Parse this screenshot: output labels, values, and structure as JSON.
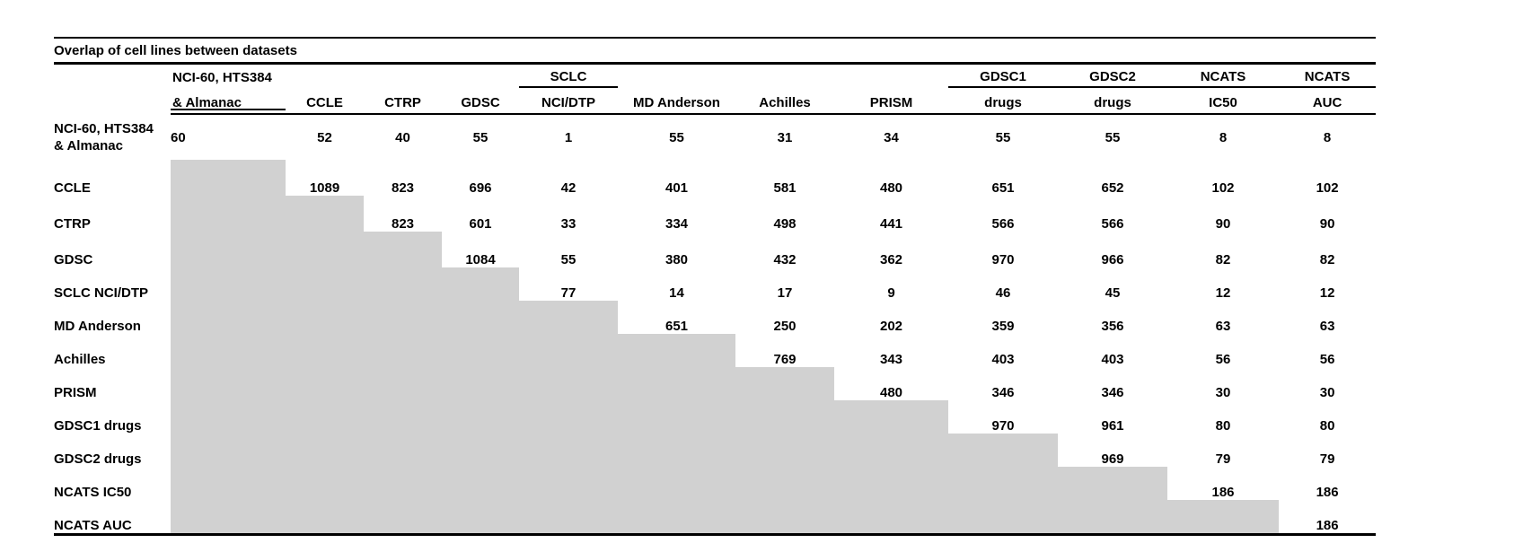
{
  "table": {
    "title": "Overlap of cell lines between datasets",
    "col_headers": [
      {
        "top": "NCI-60, HTS384",
        "bottom": "& Almanac"
      },
      {
        "top": "",
        "bottom": "CCLE"
      },
      {
        "top": "",
        "bottom": "CTRP"
      },
      {
        "top": "",
        "bottom": "GDSC"
      },
      {
        "top": "SCLC",
        "bottom": "NCI/DTP"
      },
      {
        "top": "",
        "bottom": "MD Anderson"
      },
      {
        "top": "",
        "bottom": "Achilles"
      },
      {
        "top": "",
        "bottom": "PRISM"
      },
      {
        "top": "GDSC1",
        "bottom": "drugs"
      },
      {
        "top": "GDSC2",
        "bottom": "drugs"
      },
      {
        "top": "NCATS",
        "bottom": "IC50"
      },
      {
        "top": "NCATS",
        "bottom": "AUC"
      }
    ],
    "rows": [
      {
        "label": "NCI-60, HTS384 & Almanac",
        "label_lines": [
          "NCI-60, HTS384",
          "& Almanac"
        ],
        "values": [
          "60",
          "52",
          "40",
          "55",
          "1",
          "55",
          "31",
          "34",
          "55",
          "55",
          "8",
          "8"
        ]
      },
      {
        "label": "CCLE",
        "values": [
          null,
          "1089",
          "823",
          "696",
          "42",
          "401",
          "581",
          "480",
          "651",
          "652",
          "102",
          "102"
        ]
      },
      {
        "label": "CTRP",
        "values": [
          null,
          null,
          "823",
          "601",
          "33",
          "334",
          "498",
          "441",
          "566",
          "566",
          "90",
          "90"
        ]
      },
      {
        "label": "GDSC",
        "values": [
          null,
          null,
          null,
          "1084",
          "55",
          "380",
          "432",
          "362",
          "970",
          "966",
          "82",
          "82"
        ]
      },
      {
        "label": "SCLC NCI/DTP",
        "values": [
          null,
          null,
          null,
          null,
          "77",
          "14",
          "17",
          "9",
          "46",
          "45",
          "12",
          "12"
        ]
      },
      {
        "label": "MD Anderson",
        "values": [
          null,
          null,
          null,
          null,
          null,
          "651",
          "250",
          "202",
          "359",
          "356",
          "63",
          "63"
        ]
      },
      {
        "label": "Achilles",
        "values": [
          null,
          null,
          null,
          null,
          null,
          null,
          "769",
          "343",
          "403",
          "403",
          "56",
          "56"
        ]
      },
      {
        "label": "PRISM",
        "values": [
          null,
          null,
          null,
          null,
          null,
          null,
          null,
          "480",
          "346",
          "346",
          "30",
          "30"
        ]
      },
      {
        "label": "GDSC1 drugs",
        "values": [
          null,
          null,
          null,
          null,
          null,
          null,
          null,
          null,
          "970",
          "961",
          "80",
          "80"
        ]
      },
      {
        "label": "GDSC2 drugs",
        "values": [
          null,
          null,
          null,
          null,
          null,
          null,
          null,
          null,
          null,
          "969",
          "79",
          "79"
        ]
      },
      {
        "label": "NCATS IC50",
        "values": [
          null,
          null,
          null,
          null,
          null,
          null,
          null,
          null,
          null,
          null,
          "186",
          "186"
        ]
      },
      {
        "label": "NCATS AUC",
        "values": [
          null,
          null,
          null,
          null,
          null,
          null,
          null,
          null,
          null,
          null,
          null,
          "186"
        ]
      }
    ],
    "colors": {
      "shaded_cell": "#d1d1d1",
      "text": "#000000",
      "rule": "#000000",
      "background": "#ffffff"
    }
  }
}
